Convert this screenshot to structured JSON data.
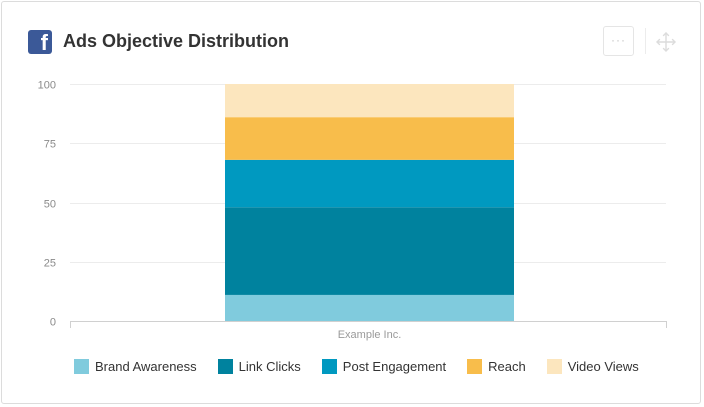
{
  "widget": {
    "title": "Ads Objective Distribution",
    "fb_icon_glyph": "f",
    "menu_glyph": "···",
    "icons": [
      "facebook-logo-icon",
      "more-options-icon",
      "move-handle-icon"
    ]
  },
  "chart_data": {
    "type": "bar",
    "stacked": true,
    "categories": [
      "Example Inc."
    ],
    "series": [
      {
        "name": "Brand Awareness",
        "values": [
          11
        ],
        "color": "#80cbdd"
      },
      {
        "name": "Link Clicks",
        "values": [
          37
        ],
        "color": "#00829e"
      },
      {
        "name": "Post Engagement",
        "values": [
          20
        ],
        "color": "#0099c0"
      },
      {
        "name": "Reach",
        "values": [
          18
        ],
        "color": "#f8bd4b"
      },
      {
        "name": "Video Views",
        "values": [
          14
        ],
        "color": "#fce6be"
      }
    ],
    "title": "",
    "xlabel": "",
    "ylabel": "",
    "ylim": [
      0,
      100
    ],
    "yticks": [
      "0",
      "25",
      "50",
      "75",
      "100"
    ],
    "grid": true,
    "legend": "bottom"
  }
}
